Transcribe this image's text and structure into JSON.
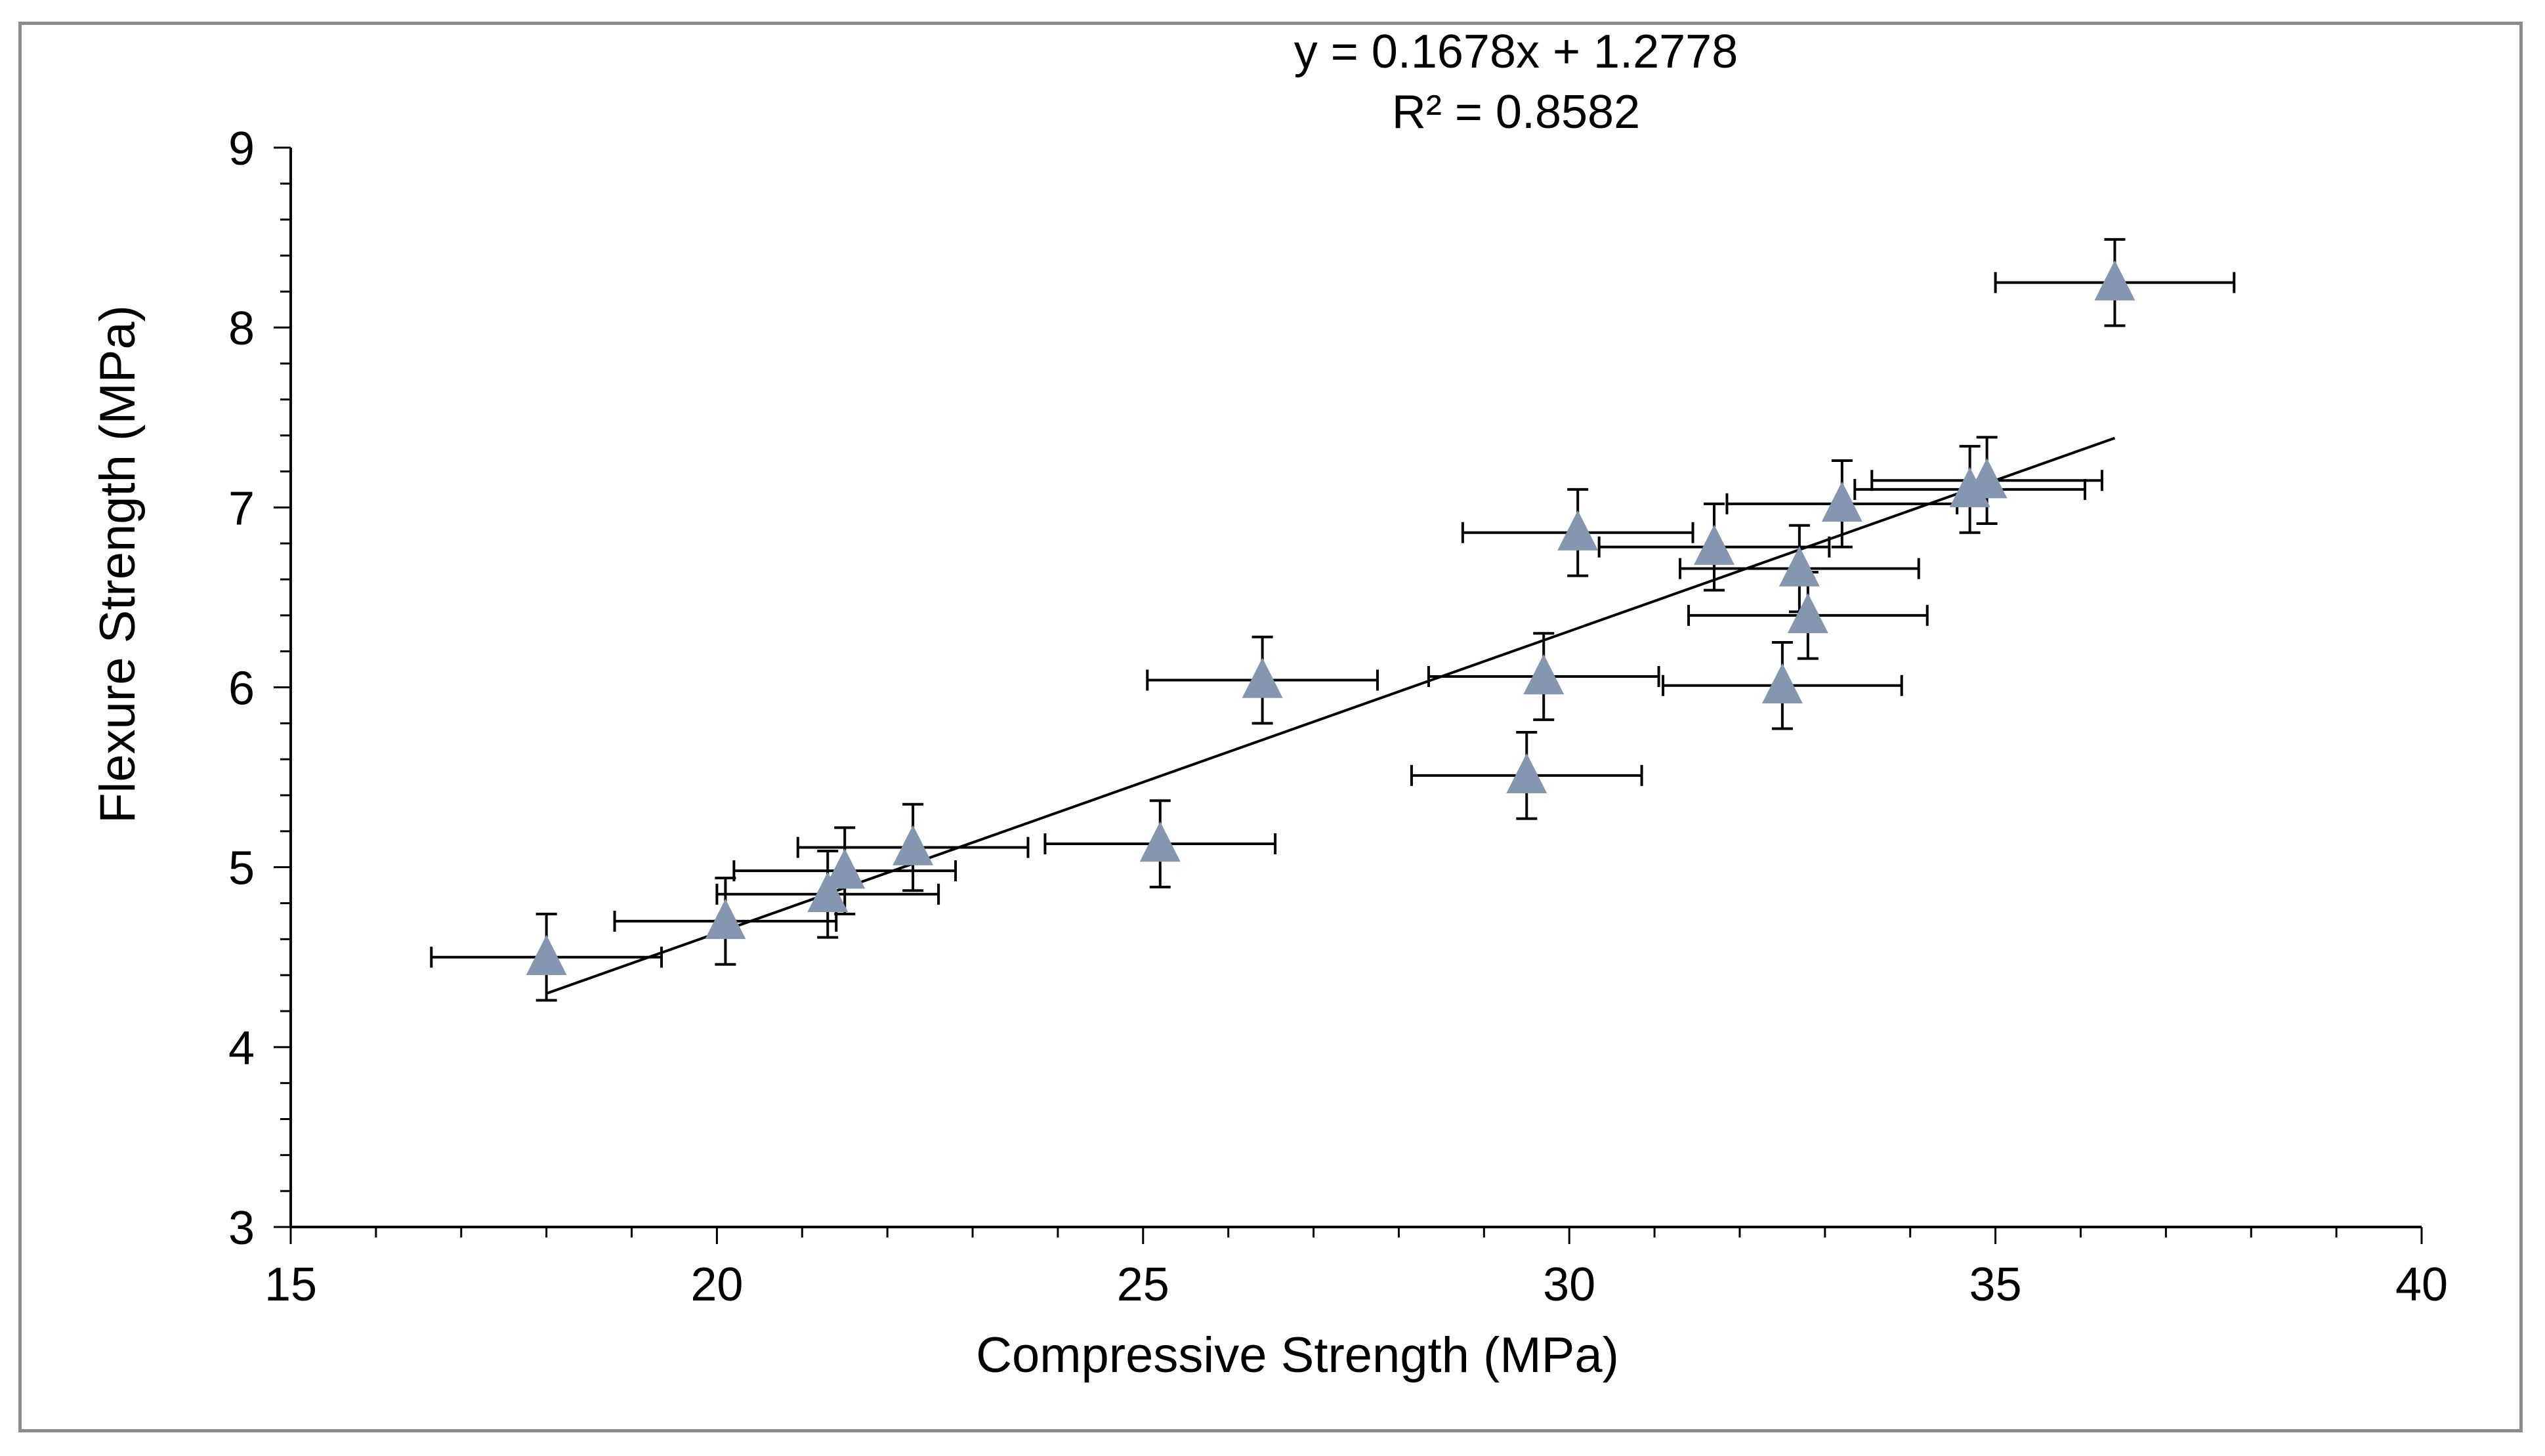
{
  "chart_data": {
    "type": "scatter",
    "xlabel": "Compressive Strength (MPa)",
    "ylabel": "Flexure Strength (MPa)",
    "xlim": [
      15,
      40
    ],
    "ylim": [
      3,
      9
    ],
    "x_ticks": [
      15,
      20,
      25,
      30,
      35,
      40
    ],
    "y_ticks": [
      3,
      4,
      5,
      6,
      7,
      8,
      9
    ],
    "x_minor_step": 1,
    "y_minor_step": 0.2,
    "grid": false,
    "marker": "triangle",
    "marker_color": "#8496b0",
    "trendline": {
      "type": "linear",
      "slope": 0.1678,
      "intercept": 1.2778,
      "x_range": [
        18,
        36.4
      ],
      "equation_label": "y = 0.1678x + 1.2778",
      "r2_label": "R² = 0.8582"
    },
    "points": [
      {
        "x": 18.0,
        "y": 4.5,
        "xerr": 1.35,
        "yerr": 0.24
      },
      {
        "x": 20.1,
        "y": 4.7,
        "xerr": 1.3,
        "yerr": 0.24
      },
      {
        "x": 21.3,
        "y": 4.85,
        "xerr": 1.3,
        "yerr": 0.24
      },
      {
        "x": 21.5,
        "y": 4.98,
        "xerr": 1.3,
        "yerr": 0.24
      },
      {
        "x": 22.3,
        "y": 5.11,
        "xerr": 1.35,
        "yerr": 0.24
      },
      {
        "x": 25.2,
        "y": 5.13,
        "xerr": 1.35,
        "yerr": 0.24
      },
      {
        "x": 26.4,
        "y": 6.04,
        "xerr": 1.35,
        "yerr": 0.24
      },
      {
        "x": 29.5,
        "y": 5.51,
        "xerr": 1.35,
        "yerr": 0.24
      },
      {
        "x": 29.7,
        "y": 6.06,
        "xerr": 1.35,
        "yerr": 0.24
      },
      {
        "x": 30.1,
        "y": 6.86,
        "xerr": 1.35,
        "yerr": 0.24
      },
      {
        "x": 31.7,
        "y": 6.78,
        "xerr": 1.35,
        "yerr": 0.24
      },
      {
        "x": 32.5,
        "y": 6.01,
        "xerr": 1.4,
        "yerr": 0.24
      },
      {
        "x": 32.7,
        "y": 6.66,
        "xerr": 1.4,
        "yerr": 0.24
      },
      {
        "x": 32.8,
        "y": 6.4,
        "xerr": 1.4,
        "yerr": 0.24
      },
      {
        "x": 33.2,
        "y": 7.02,
        "xerr": 1.35,
        "yerr": 0.24
      },
      {
        "x": 34.7,
        "y": 7.1,
        "xerr": 1.35,
        "yerr": 0.24
      },
      {
        "x": 34.9,
        "y": 7.15,
        "xerr": 1.35,
        "yerr": 0.24
      },
      {
        "x": 36.4,
        "y": 8.25,
        "xerr": 1.4,
        "yerr": 0.24
      }
    ]
  }
}
